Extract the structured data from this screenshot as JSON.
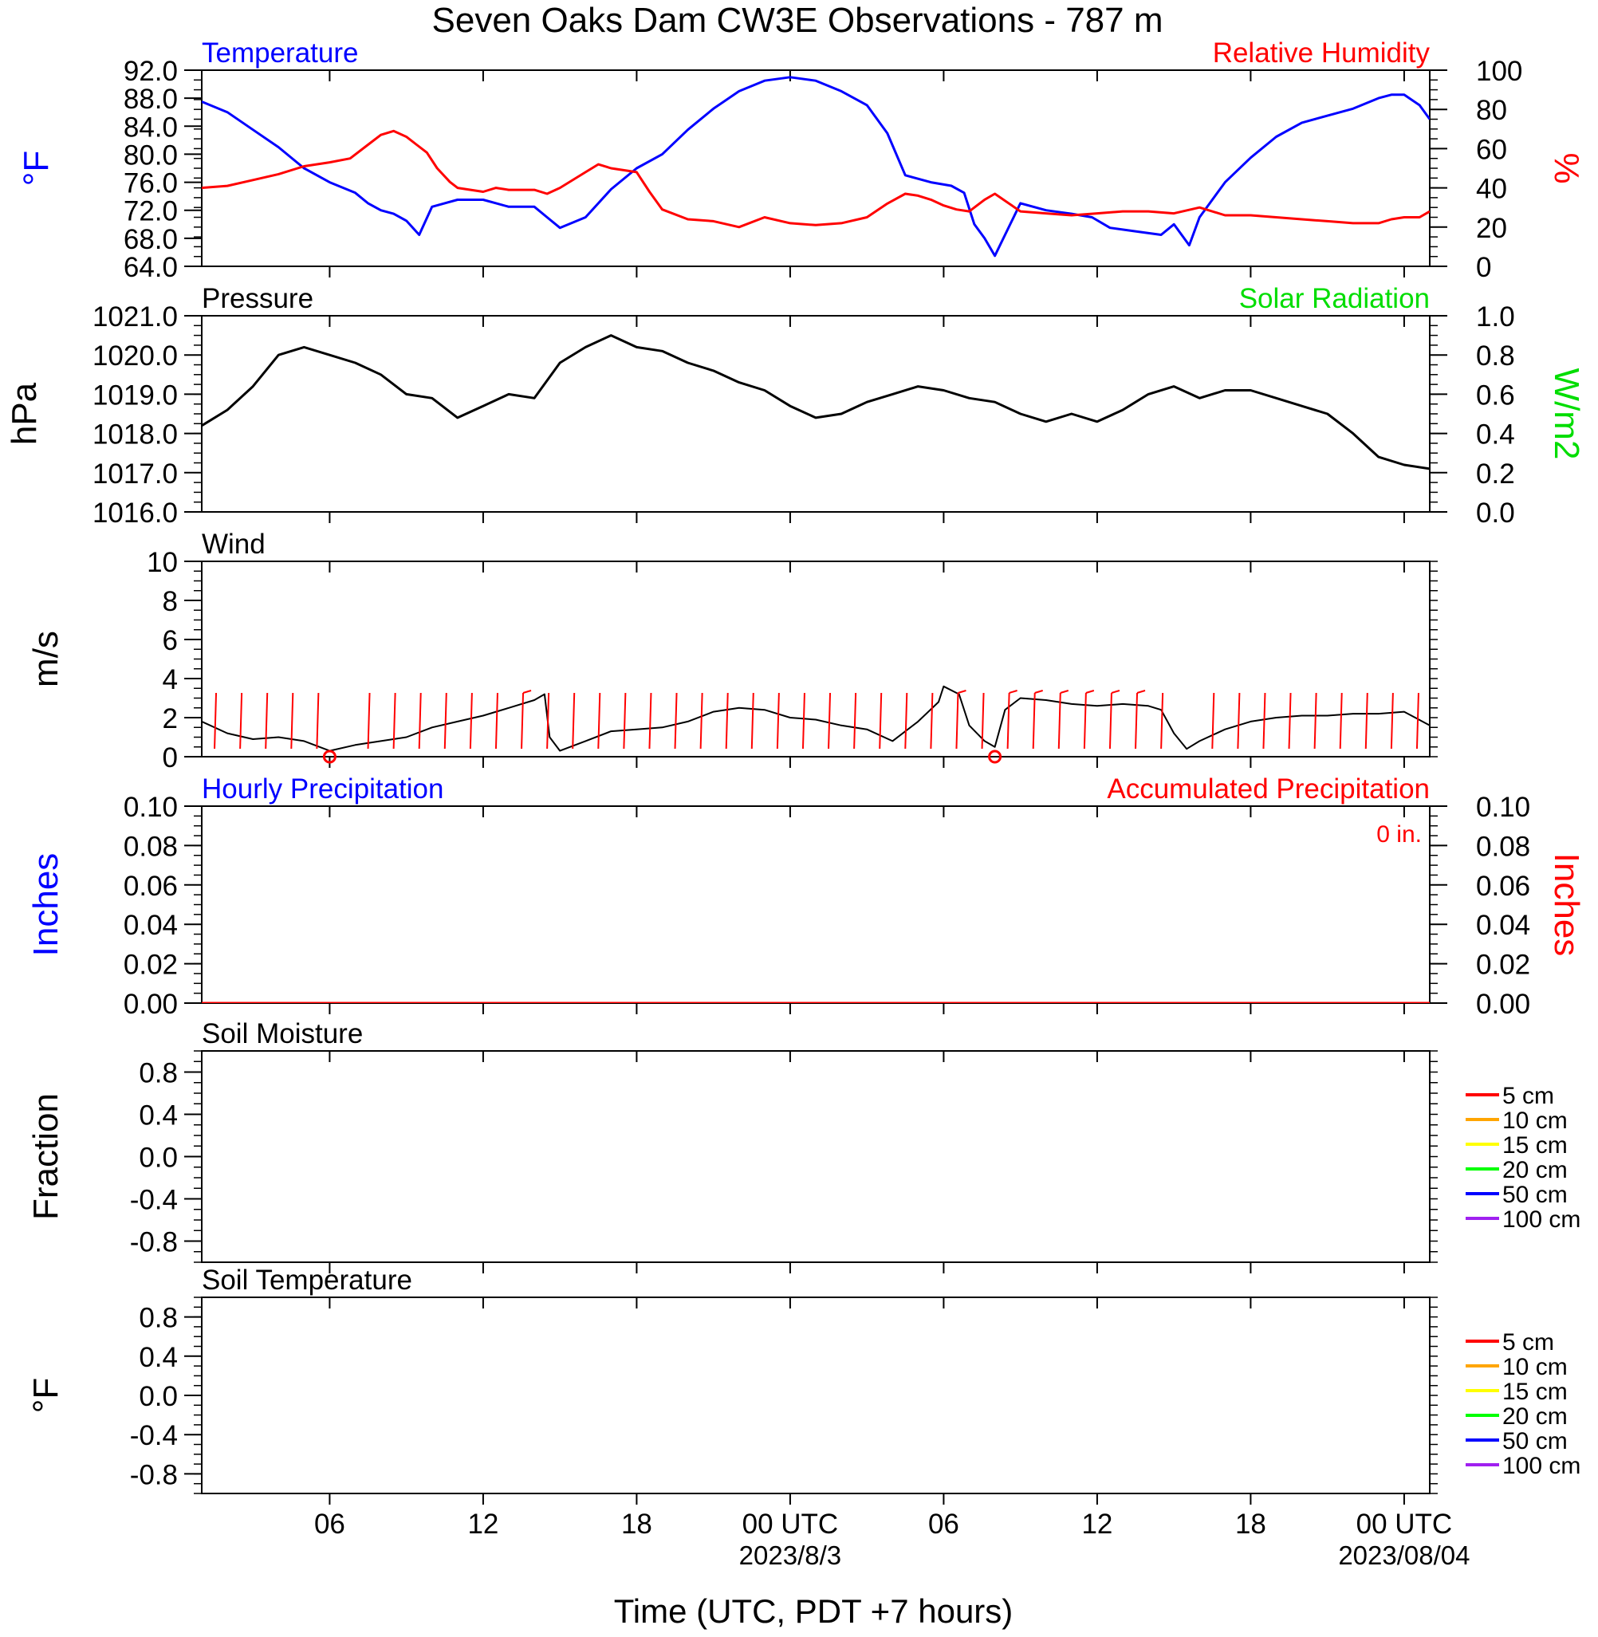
{
  "title": "Seven Oaks Dam CW3E Observations - 787 m",
  "x_axis": {
    "label": "Time (UTC, PDT +7 hours)",
    "range_hours": [
      0,
      48
    ],
    "ticks": [
      {
        "h": 5,
        "label": "06",
        "date": ""
      },
      {
        "h": 11,
        "label": "12",
        "date": ""
      },
      {
        "h": 17,
        "label": "18",
        "date": ""
      },
      {
        "h": 23,
        "label": "00 UTC",
        "date": "2023/8/3"
      },
      {
        "h": 29,
        "label": "06",
        "date": ""
      },
      {
        "h": 35,
        "label": "12",
        "date": ""
      },
      {
        "h": 41,
        "label": "18",
        "date": ""
      },
      {
        "h": 47,
        "label": "00 UTC",
        "date": "2023/08/04"
      }
    ]
  },
  "chart_data": [
    {
      "type": "line",
      "panel": "temperature",
      "title_left": "Temperature",
      "title_right": "Relative Humidity",
      "ylabel_left": "°F",
      "ylabel_right": "%",
      "ylim_left": [
        64.0,
        92.0
      ],
      "ylim_right": [
        0,
        100
      ],
      "yticks_left": [
        "64.0",
        "68.0",
        "72.0",
        "76.0",
        "80.0",
        "84.0",
        "88.0",
        "92.0"
      ],
      "yticks_right": [
        "0",
        "20",
        "40",
        "60",
        "80",
        "100"
      ],
      "series": [
        {
          "name": "Temperature",
          "axis": "left",
          "color": "#0000ff",
          "x": [
            0,
            1,
            2,
            3,
            4,
            5,
            6,
            6.5,
            7,
            7.5,
            8,
            8.5,
            9,
            10,
            11,
            12,
            13,
            13.5,
            14,
            15,
            16,
            17,
            18,
            19,
            20,
            21,
            22,
            23,
            24,
            25,
            26,
            26.8,
            27.5,
            28.5,
            29.3,
            29.8,
            30.2,
            30.6,
            31,
            32,
            33,
            34,
            34.8,
            35.5,
            36.5,
            37.5,
            38,
            38.6,
            39,
            40,
            41,
            42,
            43,
            44,
            45,
            46,
            46.5,
            47,
            47.6,
            48
          ],
          "y": [
            87.5,
            86,
            83.5,
            81,
            78,
            76,
            74.5,
            73,
            72,
            71.5,
            70.5,
            68.5,
            72.5,
            73.5,
            73.5,
            72.5,
            72.5,
            71,
            69.5,
            71,
            75,
            78,
            80,
            83.5,
            86.5,
            89,
            90.5,
            91,
            90.5,
            89,
            87,
            83,
            77,
            76,
            75.5,
            74.5,
            70,
            68,
            65.5,
            73,
            72,
            71.5,
            71,
            69.5,
            69,
            68.5,
            70,
            67,
            71,
            76,
            79.5,
            82.5,
            84.5,
            85.5,
            86.5,
            88,
            88.5,
            88.5,
            87,
            85
          ]
        },
        {
          "name": "Relative Humidity",
          "axis": "right",
          "color": "#ff0000",
          "x": [
            0,
            1,
            2,
            3,
            4,
            5,
            5.8,
            6.5,
            7,
            7.5,
            8,
            8.4,
            8.8,
            9.2,
            9.7,
            10,
            11,
            11.5,
            12,
            13,
            13.5,
            14,
            15,
            15.5,
            16,
            17,
            17.5,
            18,
            19,
            20,
            21,
            22,
            23,
            24,
            25,
            26,
            26.8,
            27.5,
            28,
            28.5,
            29,
            29.5,
            30,
            30.6,
            31,
            32,
            33,
            34,
            35,
            36,
            37,
            38,
            39,
            40,
            41,
            42,
            43,
            44,
            45,
            46,
            46.5,
            47,
            47.6,
            48
          ],
          "y": [
            40,
            41,
            44,
            47,
            51,
            53,
            55,
            62,
            67,
            69,
            66,
            62,
            58,
            50,
            43,
            40,
            38,
            40,
            39,
            39,
            37,
            40,
            48,
            52,
            50,
            48,
            38,
            29,
            24,
            23,
            20,
            25,
            22,
            21,
            22,
            25,
            32,
            37,
            36,
            34,
            31,
            29,
            28,
            34,
            37,
            28,
            27,
            26,
            27,
            28,
            28,
            27,
            30,
            26,
            26,
            25,
            24,
            23,
            22,
            22,
            24,
            25,
            25,
            28
          ]
        }
      ]
    },
    {
      "type": "line",
      "panel": "pressure",
      "title_left": "Pressure",
      "title_right": "Solar Radiation",
      "ylabel_left": "hPa",
      "ylabel_right": "W/m2",
      "ylim_left": [
        1016.0,
        1021.0
      ],
      "ylim_right": [
        0.0,
        1.0
      ],
      "yticks_left": [
        "1016.0",
        "1017.0",
        "1018.0",
        "1019.0",
        "1020.0",
        "1021.0"
      ],
      "yticks_right": [
        "0.0",
        "0.2",
        "0.4",
        "0.6",
        "0.8",
        "1.0"
      ],
      "series": [
        {
          "name": "Pressure",
          "axis": "left",
          "color": "#000000",
          "x": [
            0,
            1,
            2,
            3,
            4,
            5,
            6,
            7,
            8,
            9,
            10,
            11,
            12,
            13,
            14,
            15,
            16,
            17,
            18,
            19,
            20,
            21,
            22,
            23,
            24,
            25,
            26,
            27,
            28,
            29,
            30,
            31,
            32,
            33,
            34,
            35,
            36,
            37,
            38,
            39,
            40,
            41,
            42,
            43,
            44,
            45,
            46,
            47,
            48
          ],
          "y": [
            1018.2,
            1018.6,
            1019.2,
            1020.0,
            1020.2,
            1020.0,
            1019.8,
            1019.5,
            1019.0,
            1018.9,
            1018.4,
            1018.7,
            1019.0,
            1018.9,
            1019.8,
            1020.2,
            1020.5,
            1020.2,
            1020.1,
            1019.8,
            1019.6,
            1019.3,
            1019.1,
            1018.7,
            1018.4,
            1018.5,
            1018.8,
            1019.0,
            1019.2,
            1019.1,
            1018.9,
            1018.8,
            1018.5,
            1018.3,
            1018.5,
            1018.3,
            1018.6,
            1019.0,
            1019.2,
            1018.9,
            1019.1,
            1019.1,
            1018.9,
            1018.7,
            1018.5,
            1018.0,
            1017.4,
            1017.2,
            1017.1
          ]
        }
      ]
    },
    {
      "type": "line",
      "panel": "wind",
      "title_left": "Wind",
      "ylabel_left": "m/s",
      "ylim_left": [
        0,
        10
      ],
      "yticks_left": [
        "0",
        "2",
        "4",
        "6",
        "8",
        "10"
      ],
      "calm_markers_h": [
        5,
        31
      ],
      "series": [
        {
          "name": "Wind",
          "axis": "left",
          "color": "#000000",
          "x": [
            0,
            1,
            2,
            3,
            4,
            5,
            6,
            7,
            8,
            9,
            10,
            11,
            12,
            13,
            13.4,
            13.6,
            14,
            15,
            16,
            17,
            18,
            19,
            20,
            21,
            22,
            23,
            24,
            25,
            26,
            27,
            28,
            28.8,
            29,
            29.6,
            30,
            30.6,
            31,
            31.4,
            32,
            33,
            34,
            35,
            36,
            37,
            37.5,
            38,
            38.5,
            39,
            40,
            41,
            42,
            43,
            44,
            45,
            46,
            47,
            48
          ],
          "y": [
            1.8,
            1.2,
            0.9,
            1.0,
            0.8,
            0.3,
            0.6,
            0.8,
            1.0,
            1.5,
            1.8,
            2.1,
            2.5,
            2.9,
            3.2,
            1.0,
            0.3,
            0.8,
            1.3,
            1.4,
            1.5,
            1.8,
            2.3,
            2.5,
            2.4,
            2.0,
            1.9,
            1.6,
            1.4,
            0.8,
            1.8,
            2.8,
            3.6,
            3.2,
            1.6,
            0.8,
            0.5,
            2.4,
            3.0,
            2.9,
            2.7,
            2.6,
            2.7,
            2.6,
            2.4,
            1.2,
            0.4,
            0.8,
            1.4,
            1.8,
            2.0,
            2.1,
            2.1,
            2.2,
            2.2,
            2.3,
            1.6
          ]
        }
      ]
    },
    {
      "type": "line",
      "panel": "precipitation",
      "title_left": "Hourly Precipitation",
      "title_right": "Accumulated Precipitation",
      "annotation": "0 in.",
      "ylabel_left": "Inches",
      "ylabel_right": "Inches",
      "ylim_left": [
        0.0,
        0.1
      ],
      "ylim_right": [
        0.0,
        0.1
      ],
      "yticks_left": [
        "0.00",
        "0.02",
        "0.04",
        "0.06",
        "0.08",
        "0.10"
      ],
      "yticks_right": [
        "0.00",
        "0.02",
        "0.04",
        "0.06",
        "0.08",
        "0.10"
      ],
      "series": [
        {
          "name": "Hourly Precipitation",
          "axis": "left",
          "color": "#0000ff",
          "x": [
            0,
            48
          ],
          "y": [
            0,
            0
          ]
        },
        {
          "name": "Accumulated Precipitation",
          "axis": "right",
          "color": "#ff0000",
          "x": [
            0,
            48
          ],
          "y": [
            0,
            0
          ]
        }
      ]
    },
    {
      "type": "line",
      "panel": "soil_moisture",
      "title_left": "Soil Moisture",
      "ylabel_left": "Fraction",
      "ylim_left": [
        -1.0,
        1.0
      ],
      "yticks_left": [
        "-0.8",
        "-0.4",
        "0.0",
        "0.4",
        "0.8"
      ],
      "legend": [
        {
          "label": "5 cm",
          "color": "#ff0000"
        },
        {
          "label": "10 cm",
          "color": "#ffa500"
        },
        {
          "label": "15 cm",
          "color": "#ffff00"
        },
        {
          "label": "20 cm",
          "color": "#00ff00"
        },
        {
          "label": "50 cm",
          "color": "#0000ff"
        },
        {
          "label": "100 cm",
          "color": "#a020f0"
        }
      ],
      "series": []
    },
    {
      "type": "line",
      "panel": "soil_temperature",
      "title_left": "Soil Temperature",
      "ylabel_left": "°F",
      "ylim_left": [
        -1.0,
        1.0
      ],
      "yticks_left": [
        "-0.8",
        "-0.4",
        "0.0",
        "0.4",
        "0.8"
      ],
      "legend": [
        {
          "label": "5 cm",
          "color": "#ff0000"
        },
        {
          "label": "10 cm",
          "color": "#ffa500"
        },
        {
          "label": "15 cm",
          "color": "#ffff00"
        },
        {
          "label": "20 cm",
          "color": "#00ff00"
        },
        {
          "label": "50 cm",
          "color": "#0000ff"
        },
        {
          "label": "100 cm",
          "color": "#a020f0"
        }
      ],
      "series": []
    }
  ],
  "colors": {
    "temperature": "#0000ff",
    "humidity": "#ff0000",
    "solar": "#00dd00",
    "black": "#000000",
    "barb": "#ff0000"
  }
}
